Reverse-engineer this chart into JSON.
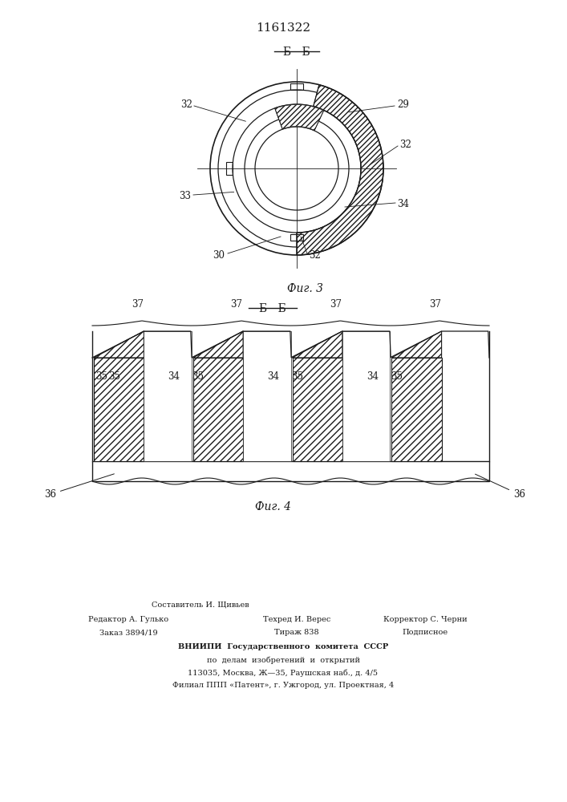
{
  "patent_number": "1161322",
  "bg_color": "#ffffff",
  "line_color": "#1a1a1a",
  "fig3_label": "Фиг. 3",
  "fig4_label": "Фиг. 4",
  "section_label": "Б - Б",
  "footer_col1_line1": "Редактор А. Гулько",
  "footer_col1_line2": "Заказ 3894/19",
  "footer_col2_line1": "Составитель И. Щивьев",
  "footer_col2_line2": "Техред И. Верес",
  "footer_col2_line3": "Тираж 838",
  "footer_col3_line1": "Корректор С. Черни",
  "footer_col3_line2": "Подписное",
  "footer_vniip1": "ВНИИПИ  Государственного  комитета  СССР",
  "footer_vniip2": "по  делам  изобретений  и  открытий",
  "footer_vniip3": "113035, Москва, Ж—35, Раушская наб., д. 4/5",
  "footer_vniip4": "Филиал ППП «Патент», г. Ужгород, ул. Проектная, 4"
}
